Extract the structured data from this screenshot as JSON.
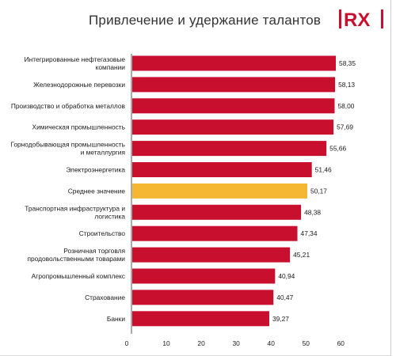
{
  "title": "Привлечение и удержание талантов",
  "logo": {
    "text": "RX",
    "color": "#c8102e"
  },
  "colors": {
    "bar": "#c8102e",
    "highlight": "#f5b731",
    "axis": "#555555"
  },
  "chart_data": {
    "type": "bar",
    "orientation": "horizontal",
    "title": "Привлечение и удержание талантов",
    "xlabel": "",
    "ylabel": "",
    "xlim": [
      0,
      60
    ],
    "xticks": [
      "0",
      "10",
      "20",
      "30",
      "40",
      "50",
      "60"
    ],
    "grid": false,
    "categories": [
      [
        "Интегрированные нефтегазовые",
        "компании"
      ],
      [
        "Железнодорожные перевозки"
      ],
      [
        "Производство и обработка металлов"
      ],
      [
        "Химическая промышленность"
      ],
      [
        "Горнодобывающая промышленность",
        "и металлургия"
      ],
      [
        "Электроэнергетика"
      ],
      [
        "Среднее значение"
      ],
      [
        "Транспортная инфраструктура и",
        "логистика"
      ],
      [
        "Строительство"
      ],
      [
        "Розничная торговля",
        "продовольственными товарами"
      ],
      [
        "Агропромышленный комплекс"
      ],
      [
        "Страхование"
      ],
      [
        "Банки"
      ]
    ],
    "values": [
      58.35,
      58.13,
      58.0,
      57.69,
      55.66,
      51.46,
      50.17,
      48.38,
      47.34,
      45.21,
      40.94,
      40.47,
      39.27
    ],
    "value_labels": [
      "58,35",
      "58,13",
      "58,00",
      "57,69",
      "55,66",
      "51,46",
      "50,17",
      "48,38",
      "47,34",
      "45,21",
      "40,94",
      "40,47",
      "39,27"
    ],
    "highlight_index": 6
  }
}
